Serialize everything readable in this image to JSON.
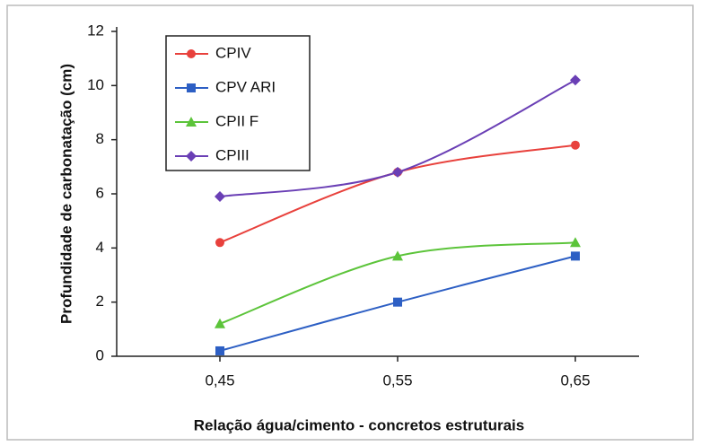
{
  "chart_data": {
    "type": "line",
    "xlabel": "Relação água/cimento - concretos estruturais",
    "ylabel": "Profundidade de carbonatação (cm)",
    "categories": [
      "0,45",
      "0,55",
      "0,65"
    ],
    "series": [
      {
        "name": "CPIV",
        "color": "#e8413c",
        "marker": "circle",
        "values": [
          4.2,
          6.8,
          7.8
        ]
      },
      {
        "name": "CPV ARI",
        "color": "#2d5fc4",
        "marker": "square",
        "values": [
          0.2,
          2.0,
          3.7
        ]
      },
      {
        "name": "CPII F",
        "color": "#5cc43a",
        "marker": "triangle",
        "values": [
          1.2,
          3.7,
          4.2
        ]
      },
      {
        "name": "CPIII",
        "color": "#6a3fb5",
        "marker": "diamond",
        "values": [
          5.9,
          6.8,
          10.2
        ]
      }
    ],
    "ylim": [
      0,
      12
    ],
    "yticks": [
      0,
      2,
      4,
      6,
      8,
      10,
      12
    ],
    "legend": "upper left"
  }
}
